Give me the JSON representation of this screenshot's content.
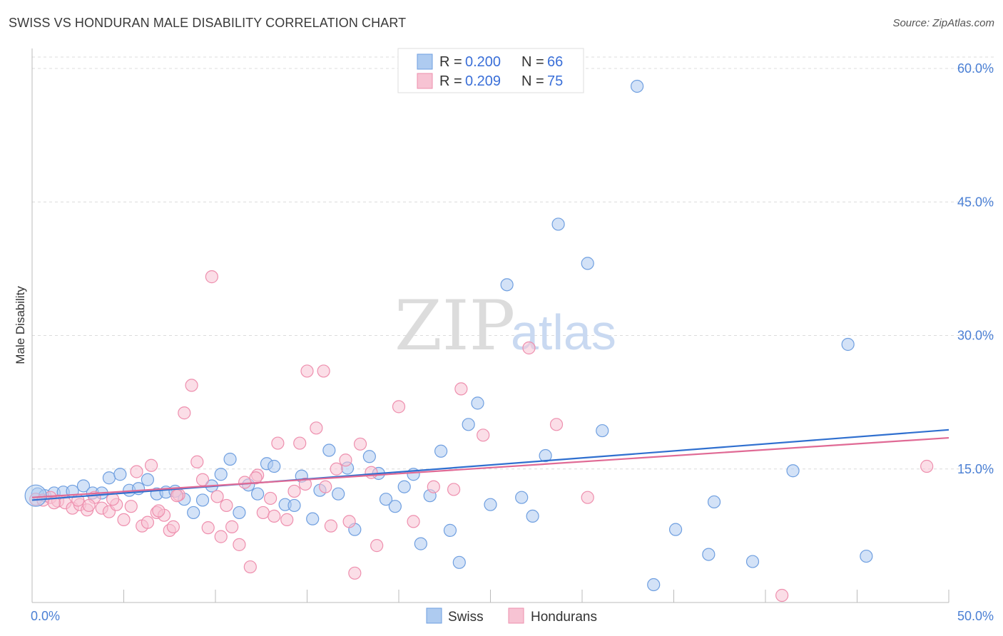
{
  "header": {
    "title": "SWISS VS HONDURAN MALE DISABILITY CORRELATION CHART",
    "source": "Source: ZipAtlas.com"
  },
  "legend": {
    "entries": [
      {
        "r_label": "R =",
        "r_value": "0.200",
        "n_label": "N =",
        "n_value": "66",
        "color": "#aecbf0",
        "stroke": "#6f9fe0"
      },
      {
        "r_label": "R =",
        "r_value": "0.209",
        "n_label": "N =",
        "n_value": "75",
        "color": "#f7c3d3",
        "stroke": "#ee8fae"
      }
    ]
  },
  "bottom_legend": [
    "Swiss",
    "Hondurans"
  ],
  "watermark": {
    "zip": "ZIP",
    "atlas": "atlas"
  },
  "chart_data": {
    "type": "scatter",
    "title": "SWISS VS HONDURAN MALE DISABILITY CORRELATION CHART",
    "xlabel": "",
    "ylabel": "Male Disability",
    "xlim": [
      0,
      50
    ],
    "ylim": [
      0,
      60
    ],
    "x_tick_labels": [
      "0.0%",
      "50.0%"
    ],
    "y_ticks": [
      15,
      30,
      45,
      60
    ],
    "y_tick_labels": [
      "15.0%",
      "30.0%",
      "45.0%",
      "60.0%"
    ],
    "grid": "horizontal dashed",
    "legend_position": "top-center",
    "series": [
      {
        "name": "Swiss",
        "color": "#aecbf0",
        "stroke": "#6f9fe0",
        "trend_color": "#2f6fcf",
        "trend": {
          "x": [
            0,
            50
          ],
          "y": [
            11.5,
            19.4
          ]
        },
        "points": [
          [
            0.3,
            12.2
          ],
          [
            0.7,
            12.0
          ],
          [
            1.2,
            12.3
          ],
          [
            1.7,
            12.4
          ],
          [
            2.2,
            12.5
          ],
          [
            2.8,
            13.1
          ],
          [
            3.3,
            12.3
          ],
          [
            3.8,
            12.3
          ],
          [
            4.2,
            14.0
          ],
          [
            4.8,
            14.4
          ],
          [
            5.3,
            12.6
          ],
          [
            5.8,
            12.8
          ],
          [
            6.3,
            13.8
          ],
          [
            6.8,
            12.2
          ],
          [
            7.3,
            12.4
          ],
          [
            7.8,
            12.5
          ],
          [
            8.3,
            11.6
          ],
          [
            8.8,
            10.1
          ],
          [
            9.3,
            11.5
          ],
          [
            9.8,
            13.1
          ],
          [
            10.3,
            14.4
          ],
          [
            10.8,
            16.1
          ],
          [
            11.3,
            10.1
          ],
          [
            11.8,
            13.2
          ],
          [
            12.3,
            12.2
          ],
          [
            12.8,
            15.6
          ],
          [
            13.2,
            15.3
          ],
          [
            13.8,
            11.0
          ],
          [
            14.3,
            10.9
          ],
          [
            14.7,
            14.2
          ],
          [
            15.3,
            9.4
          ],
          [
            15.7,
            12.6
          ],
          [
            16.2,
            17.1
          ],
          [
            16.7,
            12.2
          ],
          [
            17.2,
            15.1
          ],
          [
            17.6,
            8.2
          ],
          [
            18.4,
            16.4
          ],
          [
            18.9,
            14.5
          ],
          [
            19.3,
            11.6
          ],
          [
            19.8,
            10.8
          ],
          [
            20.3,
            13.0
          ],
          [
            20.8,
            14.4
          ],
          [
            21.2,
            6.6
          ],
          [
            21.7,
            12.0
          ],
          [
            22.3,
            17.0
          ],
          [
            22.8,
            8.1
          ],
          [
            23.3,
            4.5
          ],
          [
            23.8,
            20.0
          ],
          [
            24.3,
            22.4
          ],
          [
            25.0,
            11.0
          ],
          [
            25.9,
            35.7
          ],
          [
            26.7,
            11.8
          ],
          [
            27.3,
            9.7
          ],
          [
            28.0,
            16.5
          ],
          [
            28.7,
            42.5
          ],
          [
            30.3,
            38.1
          ],
          [
            31.1,
            19.3
          ],
          [
            33.0,
            58.0
          ],
          [
            33.9,
            2.0
          ],
          [
            35.1,
            8.2
          ],
          [
            36.9,
            5.4
          ],
          [
            37.2,
            11.3
          ],
          [
            39.3,
            4.6
          ],
          [
            41.5,
            14.8
          ],
          [
            44.5,
            29.0
          ],
          [
            45.5,
            5.2
          ]
        ]
      },
      {
        "name": "Hondurans",
        "color": "#f7c3d3",
        "stroke": "#ee8fae",
        "trend_color": "#e06a95",
        "trend": {
          "x": [
            0,
            50
          ],
          "y": [
            11.8,
            18.5
          ]
        },
        "points": [
          [
            0.2,
            11.6
          ],
          [
            0.6,
            11.5
          ],
          [
            1.0,
            11.8
          ],
          [
            1.4,
            11.4
          ],
          [
            1.8,
            11.2
          ],
          [
            2.2,
            10.6
          ],
          [
            2.6,
            11.0
          ],
          [
            3.0,
            10.4
          ],
          [
            3.4,
            11.8
          ],
          [
            3.8,
            10.6
          ],
          [
            4.2,
            10.2
          ],
          [
            4.6,
            11.0
          ],
          [
            5.0,
            9.3
          ],
          [
            5.4,
            10.8
          ],
          [
            5.7,
            14.7
          ],
          [
            6.0,
            8.6
          ],
          [
            6.3,
            9.0
          ],
          [
            6.5,
            15.4
          ],
          [
            6.8,
            10.1
          ],
          [
            7.2,
            9.8
          ],
          [
            7.5,
            8.1
          ],
          [
            7.7,
            8.5
          ],
          [
            8.0,
            12.1
          ],
          [
            8.3,
            21.3
          ],
          [
            8.7,
            24.4
          ],
          [
            9.0,
            15.8
          ],
          [
            9.3,
            13.8
          ],
          [
            9.6,
            8.4
          ],
          [
            9.8,
            36.6
          ],
          [
            10.3,
            7.4
          ],
          [
            10.6,
            10.9
          ],
          [
            10.9,
            8.5
          ],
          [
            11.3,
            6.5
          ],
          [
            11.6,
            13.5
          ],
          [
            11.9,
            4.0
          ],
          [
            12.3,
            14.3
          ],
          [
            12.6,
            10.1
          ],
          [
            13.0,
            11.7
          ],
          [
            13.2,
            9.7
          ],
          [
            13.4,
            17.9
          ],
          [
            13.9,
            9.3
          ],
          [
            14.3,
            12.5
          ],
          [
            14.6,
            17.9
          ],
          [
            15.0,
            26.0
          ],
          [
            15.5,
            19.6
          ],
          [
            15.9,
            26.0
          ],
          [
            16.3,
            8.6
          ],
          [
            16.6,
            15.0
          ],
          [
            17.1,
            16.0
          ],
          [
            17.3,
            9.1
          ],
          [
            17.6,
            3.3
          ],
          [
            17.9,
            17.8
          ],
          [
            18.8,
            6.4
          ],
          [
            20.0,
            22.0
          ],
          [
            20.8,
            9.1
          ],
          [
            23.0,
            12.7
          ],
          [
            23.4,
            24.0
          ],
          [
            24.6,
            18.8
          ],
          [
            27.1,
            28.6
          ],
          [
            28.6,
            20.0
          ],
          [
            30.3,
            11.8
          ],
          [
            40.9,
            0.8
          ],
          [
            48.8,
            15.3
          ],
          [
            3.1,
            10.9
          ],
          [
            6.9,
            10.3
          ],
          [
            12.2,
            14.0
          ],
          [
            16.0,
            13.0
          ],
          [
            1.2,
            11.2
          ],
          [
            4.4,
            11.6
          ],
          [
            7.9,
            12.0
          ],
          [
            10.1,
            11.9
          ],
          [
            14.9,
            13.3
          ],
          [
            18.5,
            14.6
          ],
          [
            21.9,
            13.0
          ],
          [
            2.5,
            11.5
          ]
        ]
      }
    ]
  }
}
